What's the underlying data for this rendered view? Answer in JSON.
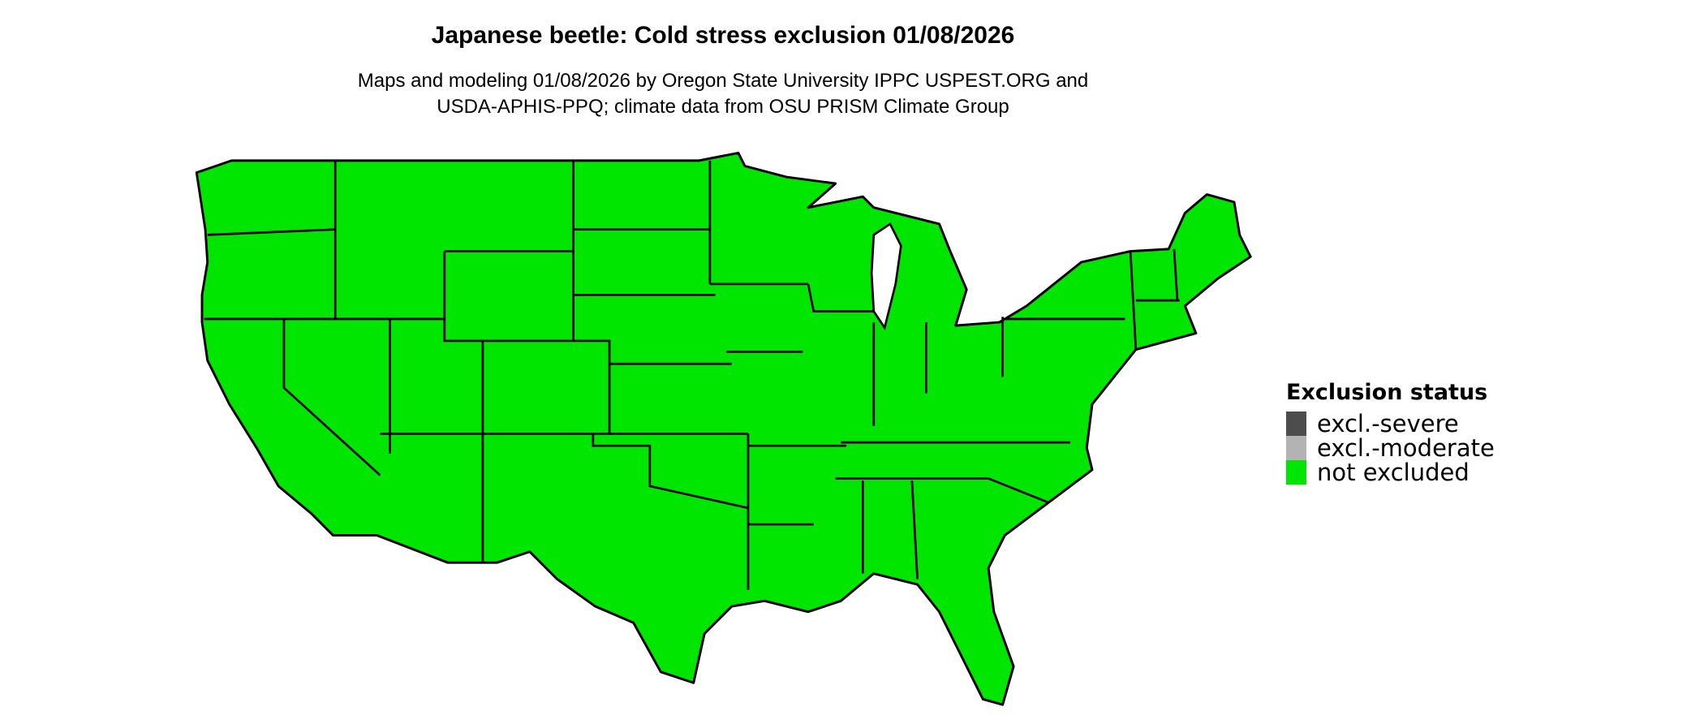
{
  "title": "Japanese beetle: Cold stress exclusion 01/08/2026",
  "subtitle_line1": "Maps and modeling 01/08/2026 by Oregon State University IPPC USPEST.ORG and",
  "subtitle_line2": "USDA-APHIS-PPQ; climate data from OSU PRISM Climate Group",
  "map": {
    "region": "Contiguous United States",
    "fill_color": "#00e600",
    "border_color": "#000000",
    "status_everywhere": "not excluded"
  },
  "legend": {
    "title": "Exclusion status",
    "items": [
      {
        "label": "excl.-severe",
        "color": "#4d4d4d"
      },
      {
        "label": "excl.-moderate",
        "color": "#b3b3b3"
      },
      {
        "label": "not excluded",
        "color": "#00e600"
      }
    ]
  }
}
